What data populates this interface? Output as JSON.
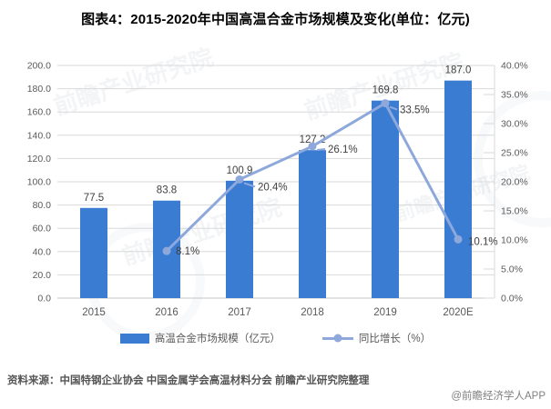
{
  "title": "图表4：2015-2020年中国高温合金市场规模及变化(单位：亿元)",
  "chart_data": {
    "type": "bar+line",
    "categories": [
      "2015",
      "2016",
      "2017",
      "2018",
      "2019",
      "2020E"
    ],
    "series": [
      {
        "name": "高温合金市场规模（亿元）",
        "type": "bar",
        "axis": "left",
        "values": [
          77.5,
          83.8,
          100.9,
          127.2,
          169.8,
          187.0
        ],
        "labels": [
          "77.5",
          "83.8",
          "100.9",
          "127.2",
          "169.8",
          "187.0"
        ],
        "color": "#3B7CD3"
      },
      {
        "name": "同比增长（%）",
        "type": "line",
        "axis": "right",
        "values": [
          null,
          8.1,
          20.4,
          26.1,
          33.5,
          10.1
        ],
        "labels": [
          null,
          "8.1%",
          "20.4%",
          "26.1%",
          "33.5%",
          "10.1%"
        ],
        "color": "#8EA8DC"
      }
    ],
    "left_axis": {
      "min": 0,
      "max": 200,
      "step": 20,
      "tick_labels": [
        "0.0",
        "20.0",
        "40.0",
        "60.0",
        "80.0",
        "100.0",
        "120.0",
        "140.0",
        "160.0",
        "180.0",
        "200.0"
      ]
    },
    "right_axis": {
      "min": 0,
      "max": 40,
      "step": 5,
      "tick_labels": [
        "0.0%",
        "5.0%",
        "10.0%",
        "15.0%",
        "20.0%",
        "25.0%",
        "30.0%",
        "35.0%",
        "40.0%"
      ]
    },
    "grid": "horizontal",
    "legend_position": "bottom"
  },
  "colors": {
    "bar": "#3B7CD3",
    "line": "#8EA8DC",
    "gridline": "#D9D9D9",
    "axis_line": "#C4C4C4",
    "tick_text": "#595959",
    "value_text": "#404040"
  },
  "source": "资料来源：中国特钢企业协会 中国金属学会高温材料分会 前瞻产业研究院整理",
  "credit": "@前瞻经济学人APP",
  "watermark_text": "前瞻产业研究院"
}
